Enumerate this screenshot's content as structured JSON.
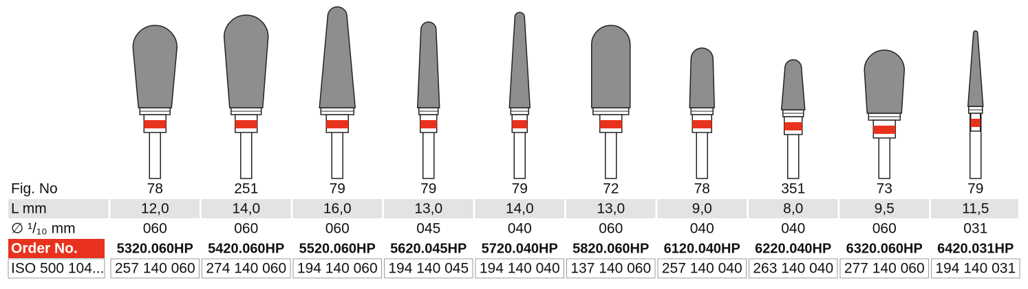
{
  "table": {
    "row_labels": [
      "Fig. No",
      "L mm",
      "∅ ¹/₁₀ mm",
      "Order No.",
      "ISO 500 104..."
    ],
    "columns": [
      {
        "fig_no": "78",
        "l_mm": "12,0",
        "diameter": "060",
        "order_no": "5320.060HP",
        "iso": "257 140 060"
      },
      {
        "fig_no": "251",
        "l_mm": "14,0",
        "diameter": "060",
        "order_no": "5420.060HP",
        "iso": "274 140 060"
      },
      {
        "fig_no": "79",
        "l_mm": "16,0",
        "diameter": "060",
        "order_no": "5520.060HP",
        "iso": "194 140 060"
      },
      {
        "fig_no": "79",
        "l_mm": "13,0",
        "diameter": "045",
        "order_no": "5620.045HP",
        "iso": "194 140 045"
      },
      {
        "fig_no": "79",
        "l_mm": "14,0",
        "diameter": "040",
        "order_no": "5720.040HP",
        "iso": "194 140 040"
      },
      {
        "fig_no": "72",
        "l_mm": "13,0",
        "diameter": "060",
        "order_no": "5820.060HP",
        "iso": "137 140 060"
      },
      {
        "fig_no": "78",
        "l_mm": "9,0",
        "diameter": "040",
        "order_no": "6120.040HP",
        "iso": "257 140 040"
      },
      {
        "fig_no": "351",
        "l_mm": "8,0",
        "diameter": "040",
        "order_no": "6220.040HP",
        "iso": "263 140 040"
      },
      {
        "fig_no": "73",
        "l_mm": "9,5",
        "diameter": "060",
        "order_no": "6320.060HP",
        "iso": "277 140 060"
      },
      {
        "fig_no": "79",
        "l_mm": "11,5",
        "diameter": "031",
        "order_no": "6420.031HP",
        "iso": "194 140 031"
      }
    ]
  }
}
